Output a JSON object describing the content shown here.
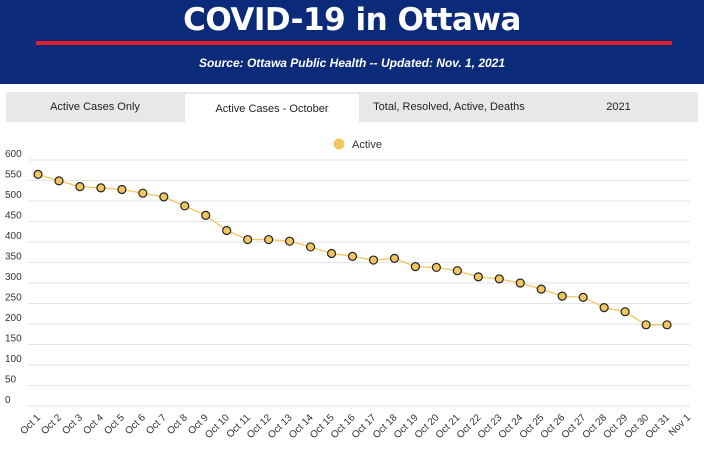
{
  "header": {
    "title": "COVID-19 in Ottawa",
    "subtitle": "Source:  Ottawa Public Health -- Updated:  Nov. 1, 2021"
  },
  "tabs": [
    {
      "label": "Active Cases Only"
    },
    {
      "label": "Active Cases - October"
    },
    {
      "label": "Total, Resolved, Active, Deaths"
    },
    {
      "label": "2021"
    }
  ],
  "active_tab": 1,
  "colors": {
    "header_bg": "#0b2a7a",
    "accent_red": "#e41e2b",
    "series_fill": "#f0c75e",
    "series_line": "#f0c75e",
    "marker_stroke": "#222222"
  },
  "chart_data": {
    "type": "line",
    "legend": {
      "entries": [
        "Active"
      ],
      "placement": "top-center"
    },
    "categories": [
      "Oct 1",
      "Oct 2",
      "Oct 3",
      "Oct 4",
      "Oct 5",
      "Oct 6",
      "Oct 7",
      "Oct 8",
      "Oct 9",
      "Oct 10",
      "Oct 11",
      "Oct 12",
      "Oct 13",
      "Oct 14",
      "Oct 15",
      "Oct 16",
      "Oct 17",
      "Oct 18",
      "Oct 19",
      "Oct 20",
      "Oct 21",
      "Oct 22",
      "Oct 23",
      "Oct 24",
      "Oct 25",
      "Oct 26",
      "Oct 27",
      "Oct 28",
      "Oct 29",
      "Oct 30",
      "Oct 31",
      "Nov 1"
    ],
    "series": [
      {
        "name": "Active",
        "values": [
          565,
          549,
          535,
          532,
          528,
          519,
          510,
          488,
          465,
          428,
          406,
          406,
          402,
          388,
          372,
          365,
          356,
          360,
          340,
          338,
          330,
          315,
          310,
          300,
          285,
          268,
          265,
          240,
          230,
          198,
          198,
          null
        ]
      }
    ],
    "ylim": [
      0,
      600
    ],
    "yticks": [
      0,
      50,
      100,
      150,
      200,
      250,
      300,
      350,
      400,
      450,
      500,
      550,
      600
    ],
    "grid": true
  }
}
